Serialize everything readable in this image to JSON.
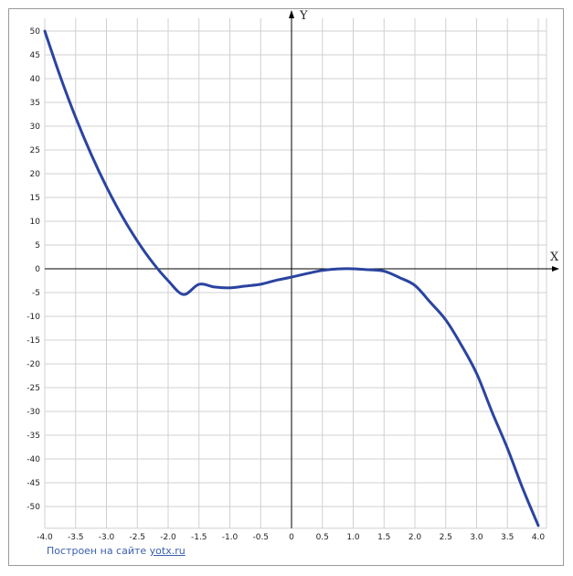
{
  "chart_data": {
    "type": "line",
    "xlabel": "X",
    "ylabel": "Y",
    "xlim": [
      -4.0,
      4.0
    ],
    "ylim": [
      -54,
      50
    ],
    "x_ticks": [
      "-4.0",
      "-3.5",
      "-3.0",
      "-2.5",
      "-2.0",
      "-1.5",
      "-1.0",
      "-0.5",
      "0",
      "0.5",
      "1.0",
      "1.5",
      "2.0",
      "2.5",
      "3.0",
      "3.5",
      "4.0"
    ],
    "y_ticks": [
      "50",
      "45",
      "40",
      "35",
      "30",
      "25",
      "20",
      "15",
      "10",
      "5",
      "0",
      "-5",
      "-10",
      "-15",
      "-20",
      "-25",
      "-30",
      "-35",
      "-40",
      "-45",
      "-50"
    ],
    "grid": true,
    "colors": {
      "curve": "#2a44a0",
      "grid": "#d0d0d0",
      "axis": "#000000"
    },
    "series": [
      {
        "x": [
          -4.0,
          -3.75,
          -3.5,
          -3.25,
          -3.0,
          -2.75,
          -2.5,
          -2.25,
          -2.0,
          -1.75,
          -1.5,
          -1.25,
          -1.0,
          -0.75,
          -0.5,
          -0.25,
          0.0,
          0.25,
          0.5,
          0.75,
          1.0,
          1.25,
          1.5,
          1.75,
          2.0,
          2.25,
          2.5,
          2.75,
          3.0,
          3.25,
          3.5,
          3.75,
          4.0
        ],
        "y": [
          50.0,
          40.48,
          31.86,
          24.14,
          17.25,
          11.16,
          5.86,
          1.3,
          -2.5,
          -5.41,
          -3.25,
          -3.82,
          -4.0,
          -3.63,
          -3.25,
          -2.42,
          -1.75,
          -1.0,
          -0.35,
          -0.02,
          0.0,
          -0.2,
          -0.5,
          -1.85,
          -3.5,
          -7.05,
          -10.75,
          -15.98,
          -22.0,
          -30.1,
          -37.75,
          -46.27,
          -54.0
        ]
      }
    ]
  },
  "credit": {
    "prefix": "Построен на сайте ",
    "link": "yotx.ru"
  }
}
